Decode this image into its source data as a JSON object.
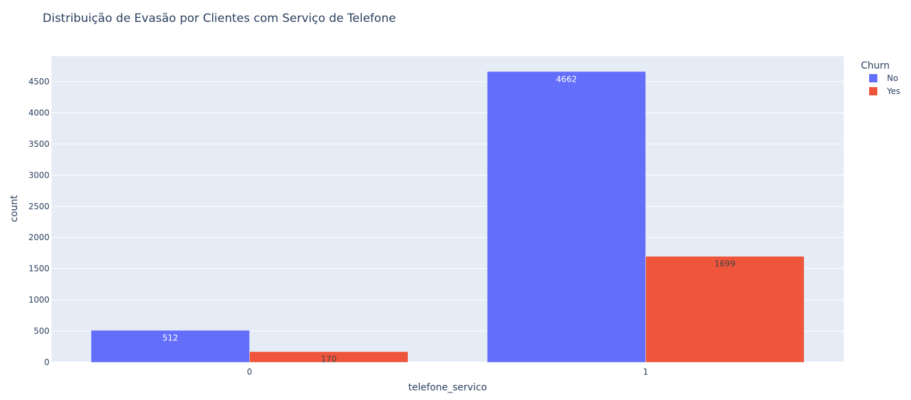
{
  "chart_data": {
    "type": "bar",
    "title": "Distribuição de Evasão por Clientes com Serviço de Telefone",
    "xlabel": "telefone_servico",
    "ylabel": "count",
    "categories": [
      "0",
      "1"
    ],
    "series": [
      {
        "name": "No",
        "values": [
          512,
          4662
        ],
        "color": "#636efa",
        "label_color": "#ffffff"
      },
      {
        "name": "Yes",
        "values": [
          170,
          1699
        ],
        "color": "#ef553b",
        "label_color": "#444444"
      }
    ],
    "ylim": [
      0,
      4907
    ],
    "yticks": [
      0,
      500,
      1000,
      1500,
      2000,
      2500,
      3000,
      3500,
      4000,
      4500
    ],
    "legend": {
      "title": "Churn",
      "position": "top-right"
    },
    "grid": true,
    "plot_background": "#e5ecf6"
  }
}
